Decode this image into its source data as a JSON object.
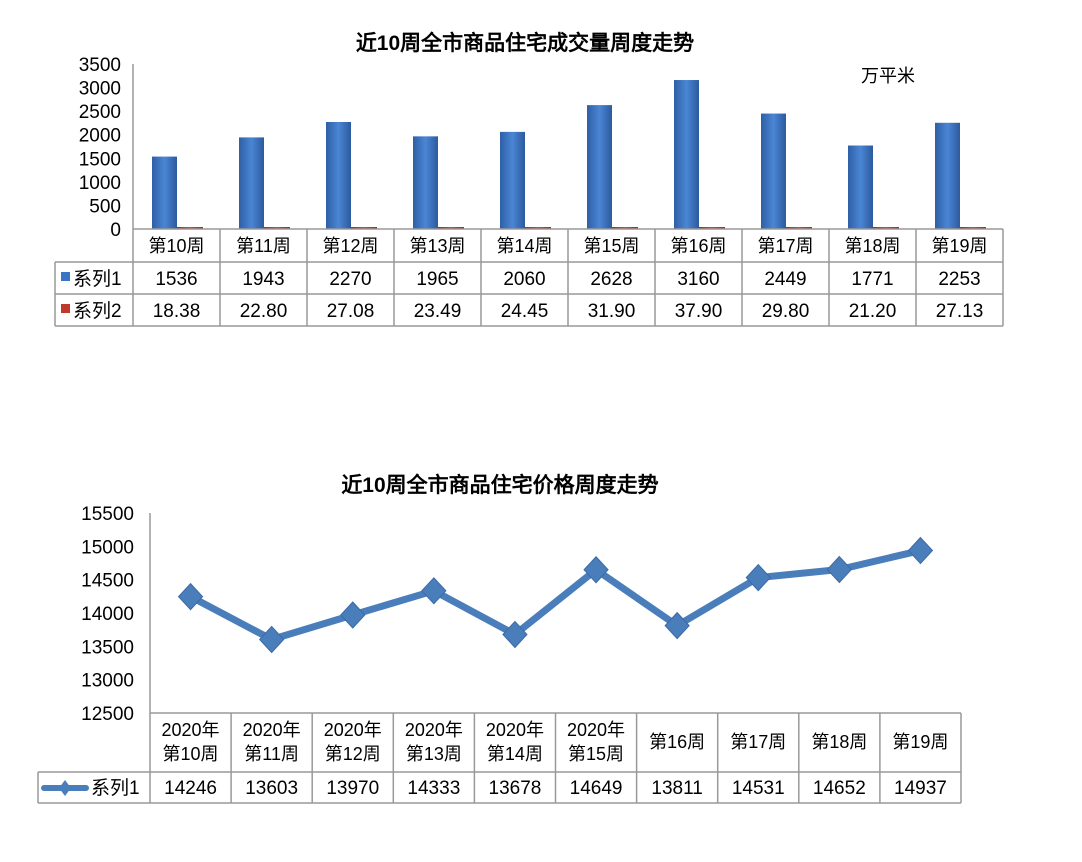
{
  "chart_data": [
    {
      "type": "bar",
      "title": "近10周全市商品住宅成交量周度走势",
      "unit_label": "万平米",
      "categories": [
        "第10周",
        "第11周",
        "第12周",
        "第13周",
        "第14周",
        "第15周",
        "第16周",
        "第17周",
        "第18周",
        "第19周"
      ],
      "series": [
        {
          "name": "系列1",
          "color": "#3a74c4",
          "values": [
            1536,
            1943,
            2270,
            1965,
            2060,
            2628,
            3160,
            2449,
            1771,
            2253
          ],
          "labels": [
            "1536",
            "1943",
            "2270",
            "1965",
            "2060",
            "2628",
            "3160",
            "2449",
            "1771",
            "2253"
          ]
        },
        {
          "name": "系列2",
          "color": "#c0392b",
          "values": [
            18.38,
            22.8,
            27.08,
            23.49,
            24.45,
            31.9,
            37.9,
            29.8,
            21.2,
            27.13
          ],
          "labels": [
            "18.38",
            "22.80",
            "27.08",
            "23.49",
            "24.45",
            "31.90",
            "37.90",
            "29.80",
            "21.20",
            "27.13"
          ]
        }
      ],
      "ylim": [
        0,
        3500
      ],
      "yticks": [
        "0",
        "500",
        "1000",
        "1500",
        "2000",
        "2500",
        "3000",
        "3500"
      ],
      "grid": false,
      "legend": "data-table"
    },
    {
      "type": "line",
      "title": "近10周全市商品住宅价格周度走势",
      "categories": [
        [
          "2020年",
          "第10周"
        ],
        [
          "2020年",
          "第11周"
        ],
        [
          "2020年",
          "第12周"
        ],
        [
          "2020年",
          "第13周"
        ],
        [
          "2020年",
          "第14周"
        ],
        [
          "2020年",
          "第15周"
        ],
        [
          "第16周"
        ],
        [
          "第17周"
        ],
        [
          "第18周"
        ],
        [
          "第19周"
        ]
      ],
      "series": [
        {
          "name": "系列1",
          "color": "#4a7ebb",
          "marker": "diamond",
          "values": [
            14246,
            13603,
            13970,
            14333,
            13678,
            14649,
            13811,
            14531,
            14652,
            14937
          ],
          "labels": [
            "14246",
            "13603",
            "13970",
            "14333",
            "13678",
            "14649",
            "13811",
            "14531",
            "14652",
            "14937"
          ]
        }
      ],
      "ylim": [
        12500,
        15500
      ],
      "yticks": [
        "12500",
        "13000",
        "13500",
        "14000",
        "14500",
        "15000",
        "15500"
      ],
      "grid": false,
      "legend": "data-table"
    }
  ]
}
